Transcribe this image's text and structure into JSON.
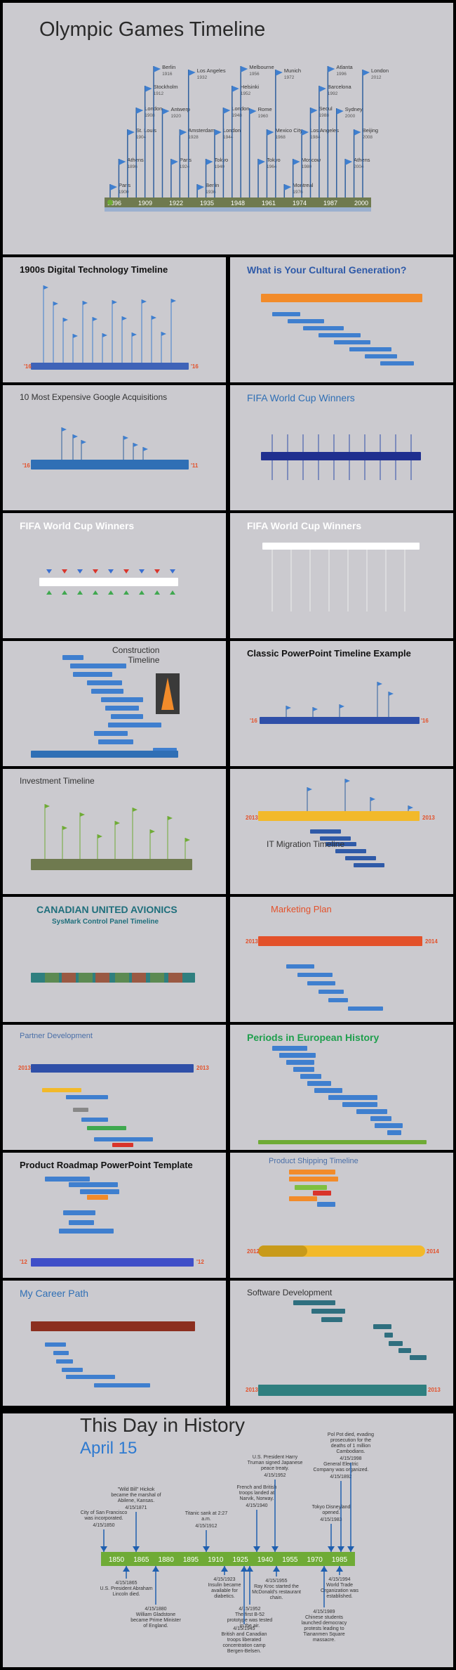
{
  "colors": {
    "background": "#cbcacf",
    "frame": "#000000",
    "flag_blue": "#3f7fcf",
    "bar_olive": "#6f7a4f",
    "bar_green": "#6fab36",
    "bar_orange": "#f28b2a",
    "bar_navy": "#2f4fa8"
  },
  "hero": {
    "title": "Olympic Games Timeline",
    "axis_years": [
      "1896",
      "1909",
      "1922",
      "1935",
      "1948",
      "1961",
      "1974",
      "1987",
      "2000"
    ],
    "flags": [
      {
        "city": "Paris",
        "year": "1900"
      },
      {
        "city": "Athens",
        "year": "1896"
      },
      {
        "city": "St. Louis",
        "year": "1904"
      },
      {
        "city": "London",
        "year": "1908"
      },
      {
        "city": "Stockholm",
        "year": "1912"
      },
      {
        "city": "Berlin",
        "year": "1916"
      },
      {
        "city": "Antwerp",
        "year": "1920"
      },
      {
        "city": "Paris",
        "year": "1924"
      },
      {
        "city": "Amsterdam",
        "year": "1928"
      },
      {
        "city": "Los Angeles",
        "year": "1932"
      },
      {
        "city": "Berlin",
        "year": "1936"
      },
      {
        "city": "Tokyo",
        "year": "1940"
      },
      {
        "city": "London",
        "year": "1944"
      },
      {
        "city": "London",
        "year": "1948"
      },
      {
        "city": "Helsinki",
        "year": "1952"
      },
      {
        "city": "Melbourne",
        "year": "1956"
      },
      {
        "city": "Rome",
        "year": "1960"
      },
      {
        "city": "Tokyo",
        "year": "1964"
      },
      {
        "city": "Mexico City",
        "year": "1968"
      },
      {
        "city": "Munich",
        "year": "1972"
      },
      {
        "city": "Montreal",
        "year": "1976"
      },
      {
        "city": "Moscow",
        "year": "1980"
      },
      {
        "city": "Los Angeles",
        "year": "1984"
      },
      {
        "city": "Seoul",
        "year": "1988"
      },
      {
        "city": "Barcelona",
        "year": "1992"
      },
      {
        "city": "Atlanta",
        "year": "1996"
      },
      {
        "city": "Sydney",
        "year": "2000"
      },
      {
        "city": "Athens",
        "year": "2004"
      },
      {
        "city": "Beijing",
        "year": "2008"
      },
      {
        "city": "London",
        "year": "2012"
      }
    ]
  },
  "thumbnails": [
    {
      "title": "1900s Digital Technology Timeline",
      "style": "dark-bold"
    },
    {
      "title": "What is Your Cultural Generation?",
      "style": "blue-bold"
    },
    {
      "title": "10 Most Expensive Google Acquisitions",
      "style": "gray"
    },
    {
      "title": "FIFA World Cup Winners",
      "style": "blue"
    },
    {
      "title": "FIFA World Cup Winners",
      "style": "white-bold"
    },
    {
      "title": "FIFA World Cup Winners",
      "style": "white-bold"
    },
    {
      "title": "Construction\nTimeline",
      "style": "gray"
    },
    {
      "title": "Classic PowerPoint Timeline Example",
      "style": "dark-bold"
    },
    {
      "title": "Investment Timeline",
      "style": "gray"
    },
    {
      "title": "IT Migration Timeline",
      "style": "gray"
    },
    {
      "title": "CANADIAN UNITED AVIONICS",
      "subtitle": "SysMark Control Panel Timeline",
      "style": "teal-bold"
    },
    {
      "title": "Marketing Plan",
      "style": "orange"
    },
    {
      "title": "Partner Development",
      "style": "bluelt"
    },
    {
      "title": "Periods in European History",
      "style": "green-bold"
    },
    {
      "title": "Product Roadmap PowerPoint Template",
      "style": "dark-bold"
    },
    {
      "title": "Product Shipping Timeline",
      "style": "bluelt"
    },
    {
      "title": "My Career Path",
      "style": "blue"
    },
    {
      "title": "Software Development",
      "style": "gray"
    }
  ],
  "thumb_year_labels": {
    "tech_start": "'16",
    "tech_end": "'16",
    "google_start": "'16",
    "google_end": "'11",
    "classic_start": "'16",
    "classic_end": "'16",
    "it_start": "2013",
    "it_end": "2013",
    "mkt_start": "2013",
    "mkt_end": "2014",
    "partner_start": "2013",
    "partner_end": "2013",
    "roadmap_start": "'12",
    "roadmap_end": "'12",
    "ship_start": "2012",
    "ship_end": "2014",
    "soft_start": "2013",
    "soft_end": "2013"
  },
  "day_in_history": {
    "title": "This Day in History",
    "date": "April 15",
    "axis_years": [
      "1850",
      "1865",
      "1880",
      "1895",
      "1910",
      "1925",
      "1940",
      "1955",
      "1970",
      "1985"
    ],
    "events_above": [
      {
        "text": "City of San Francisco was incorporated.",
        "date": "4/15/1850"
      },
      {
        "text": "\"Wild Bill\" Hickok became the marshal of Abilene, Kansas.",
        "date": "4/15/1871"
      },
      {
        "text": "Titanic sank at 2:27 a.m.",
        "date": "4/15/1912"
      },
      {
        "text": "French and British troops landed at Narvik, Norway.",
        "date": "4/15/1940"
      },
      {
        "text": "U.S. President Harry Truman signed Japanese peace treaty.",
        "date": "4/15/1952"
      },
      {
        "text": "Tokyo Disneyland opened.",
        "date": "4/15/1983"
      },
      {
        "text": "General Electric Company was organized.",
        "date": "4/15/1892"
      },
      {
        "text": "Pol Pot died, evading prosecution for the deaths of 1 million Cambodians.",
        "date": "4/15/1998"
      }
    ],
    "events_below": [
      {
        "text": "U.S. President Abraham Lincoln died.",
        "date": "4/15/1865"
      },
      {
        "text": "William Gladstone became Prime Minister of England.",
        "date": "4/15/1880"
      },
      {
        "text": "Insulin became available for diabetics.",
        "date": "4/15/1923"
      },
      {
        "text": "The first B-52 prototype was tested in the air.",
        "date": "4/15/1952"
      },
      {
        "text": "Ray Kroc started the McDonald's restaurant chain.",
        "date": "4/15/1955"
      },
      {
        "text": "British and Canadian troops liberated concentration camp Bergen-Belsen.",
        "date": "4/15/1945"
      },
      {
        "text": "World Trade Organization was established.",
        "date": "4/15/1994"
      },
      {
        "text": "Chinese students launched democracy protests leading to Tiananmen Square massacre.",
        "date": "4/15/1989"
      }
    ]
  }
}
